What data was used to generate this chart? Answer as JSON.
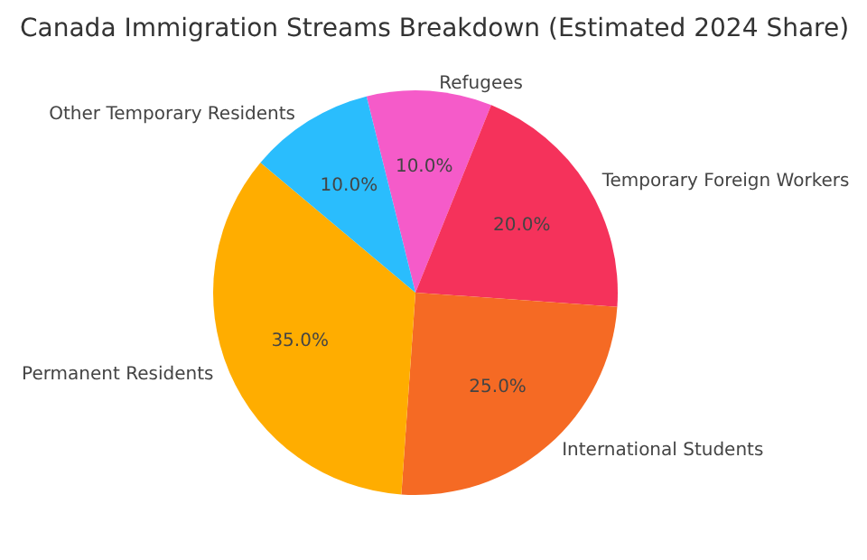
{
  "chart_data": {
    "type": "pie",
    "title": "Canada Immigration Streams Breakdown (Estimated 2024 Share)",
    "categories": [
      "Refugees",
      "Temporary Foreign Workers",
      "International Students",
      "Permanent Residents",
      "Other Temporary Residents"
    ],
    "values": [
      10,
      20,
      25,
      35,
      10
    ],
    "colors": [
      "#f55bc9",
      "#f5325b",
      "#f56a24",
      "#ffad00",
      "#2abdfd"
    ],
    "value_labels": [
      "10.0%",
      "20.0%",
      "25.0%",
      "35.0%",
      "10.0%"
    ],
    "legend": false
  }
}
